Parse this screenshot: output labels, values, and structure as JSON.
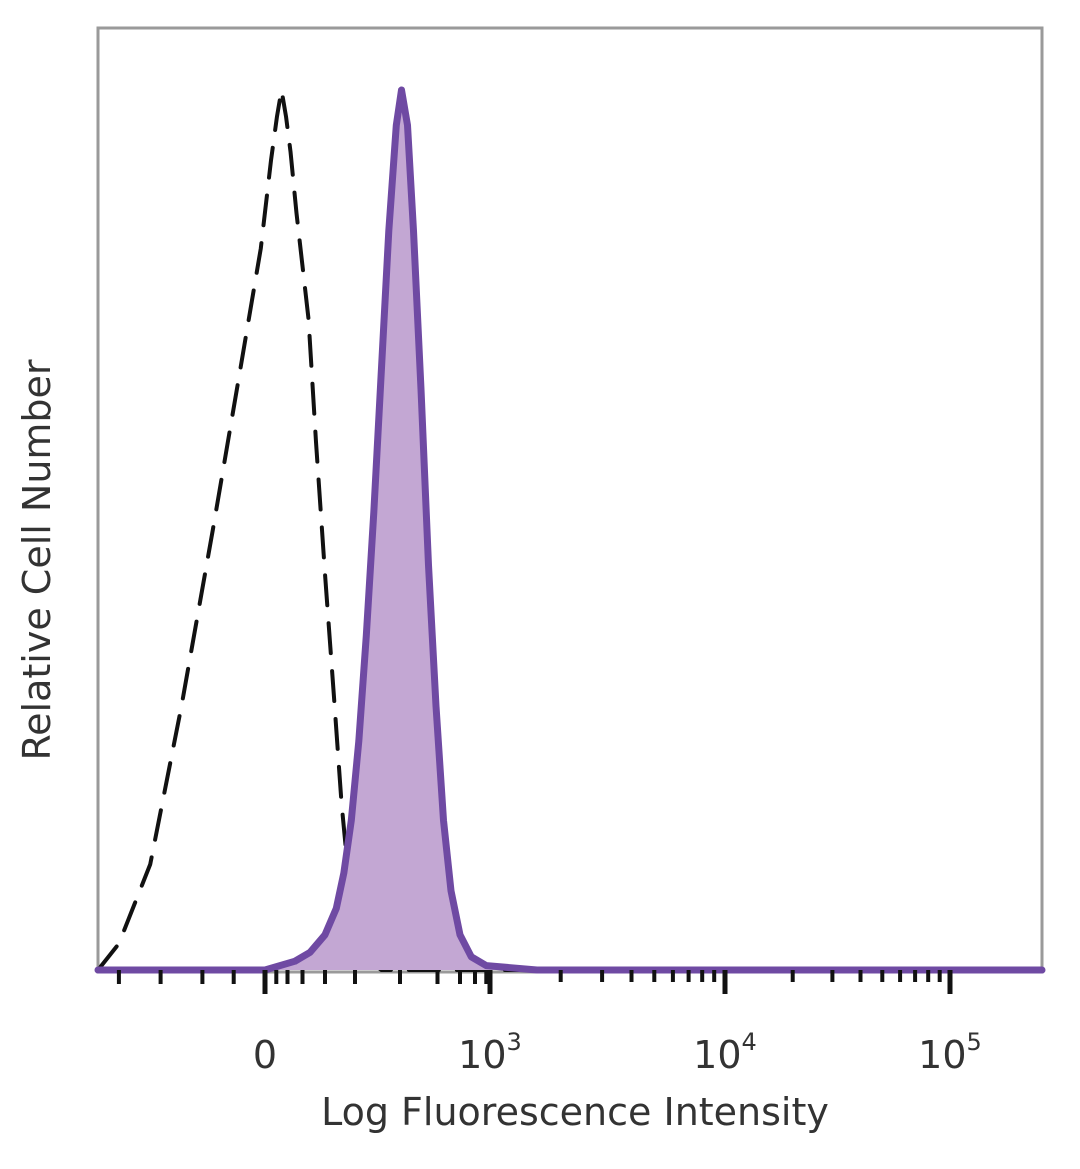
{
  "chart_data": {
    "type": "area",
    "xlabel": "Log Fluorescence Intensity",
    "ylabel": "Relative Cell Number",
    "x_scale": "biexponential",
    "x_ticks": [
      {
        "base": "0",
        "exp": "",
        "value": 0
      },
      {
        "base": "10",
        "exp": "3",
        "value": 1000
      },
      {
        "base": "10",
        "exp": "4",
        "value": 10000
      },
      {
        "base": "10",
        "exp": "5",
        "value": 100000
      }
    ],
    "xlim_decades": [
      -0.8,
      5.3
    ],
    "ylim": [
      0,
      1
    ],
    "grid": false,
    "legend": "none",
    "series": [
      {
        "style": "dashed",
        "color": "#111111",
        "fill": "none",
        "points": [
          [
            -0.8,
            0.0
          ],
          [
            -0.7,
            0.03
          ],
          [
            -0.55,
            0.12
          ],
          [
            -0.4,
            0.3
          ],
          [
            -0.25,
            0.5
          ],
          [
            -0.12,
            0.68
          ],
          [
            -0.02,
            0.82
          ],
          [
            0.08,
            0.92
          ],
          [
            0.16,
            0.97
          ],
          [
            0.22,
            1.0
          ],
          [
            0.28,
            0.97
          ],
          [
            0.34,
            0.93
          ],
          [
            0.42,
            0.86
          ],
          [
            0.5,
            0.8
          ],
          [
            0.58,
            0.74
          ],
          [
            0.68,
            0.6
          ],
          [
            0.8,
            0.45
          ],
          [
            0.92,
            0.31
          ],
          [
            1.02,
            0.19
          ],
          [
            1.12,
            0.1
          ],
          [
            1.22,
            0.05
          ],
          [
            1.32,
            0.02
          ],
          [
            1.42,
            0.01
          ],
          [
            1.55,
            0.0
          ],
          [
            5.3,
            0.0
          ]
        ]
      },
      {
        "style": "solid",
        "color": "#6f4aa3",
        "fill": "#c3a7d3",
        "points": [
          [
            -0.8,
            0.0
          ],
          [
            0.0,
            0.0
          ],
          [
            0.4,
            0.01
          ],
          [
            0.6,
            0.02
          ],
          [
            0.8,
            0.04
          ],
          [
            0.95,
            0.07
          ],
          [
            1.05,
            0.11
          ],
          [
            1.15,
            0.17
          ],
          [
            1.25,
            0.26
          ],
          [
            1.35,
            0.38
          ],
          [
            1.45,
            0.52
          ],
          [
            1.55,
            0.68
          ],
          [
            1.65,
            0.84
          ],
          [
            1.75,
            0.96
          ],
          [
            1.82,
            1.0
          ],
          [
            1.9,
            0.96
          ],
          [
            1.98,
            0.84
          ],
          [
            2.08,
            0.66
          ],
          [
            2.18,
            0.46
          ],
          [
            2.28,
            0.3
          ],
          [
            2.38,
            0.17
          ],
          [
            2.48,
            0.09
          ],
          [
            2.6,
            0.04
          ],
          [
            2.75,
            0.015
          ],
          [
            2.95,
            0.005
          ],
          [
            3.2,
            0.0
          ],
          [
            5.3,
            0.0
          ]
        ]
      }
    ]
  }
}
